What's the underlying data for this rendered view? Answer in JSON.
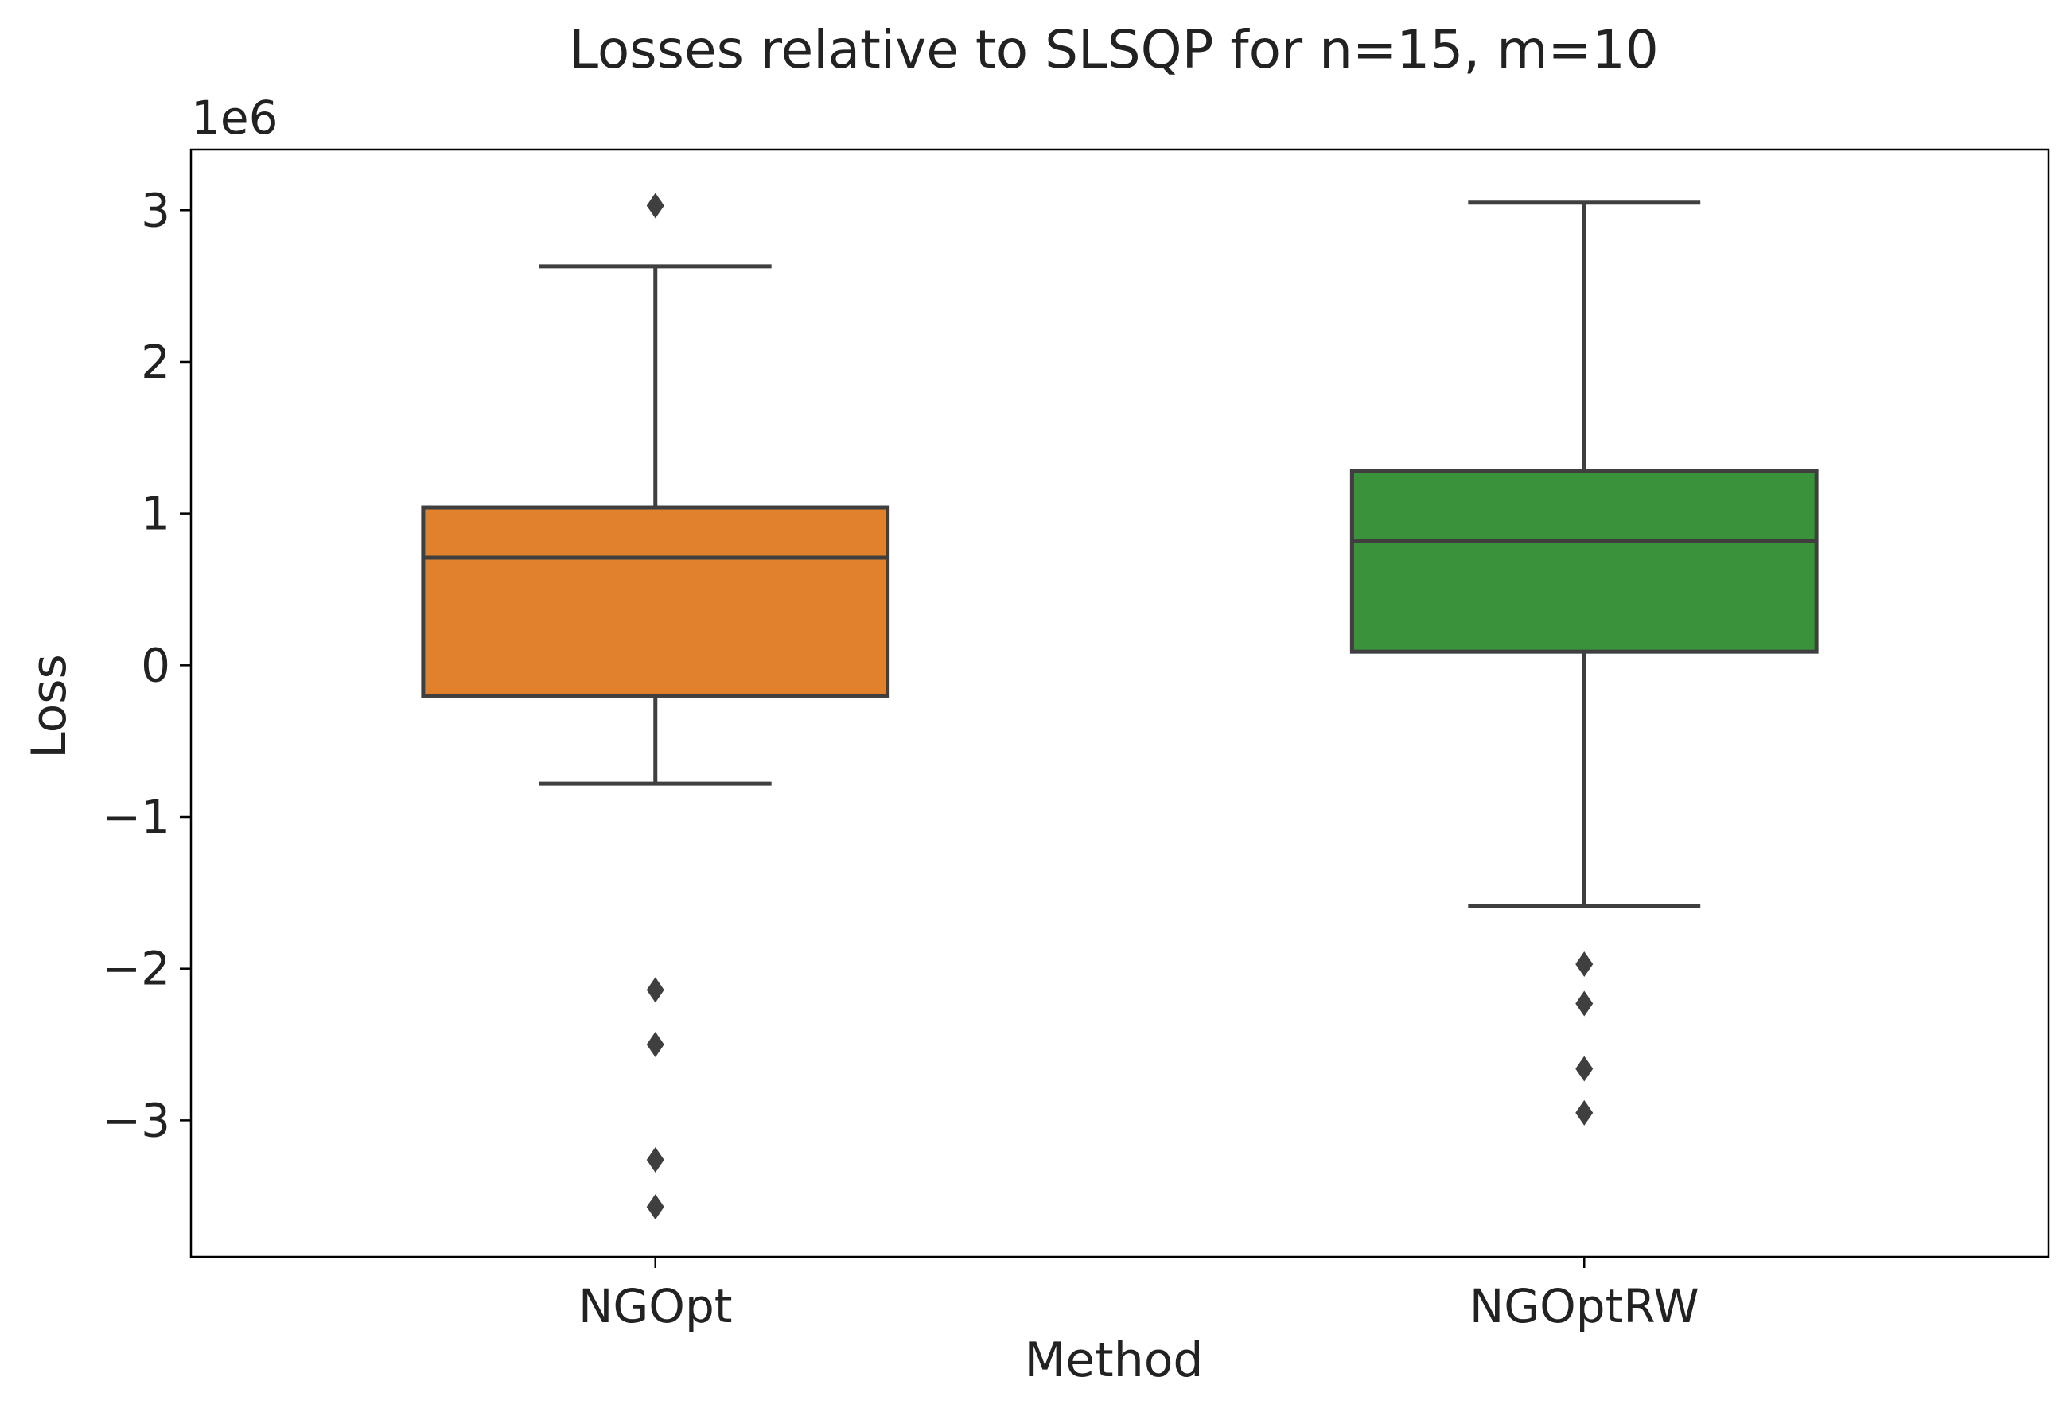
{
  "chart_data": {
    "type": "box",
    "title": "Losses relative to SLSQP for n=15, m=10",
    "xlabel": "Method",
    "ylabel": "Loss",
    "y_offset_label": "1e6",
    "y_scale": 1000000,
    "ylim": [
      -3.9,
      3.4
    ],
    "yticks": [
      -3,
      -2,
      -1,
      0,
      1,
      2,
      3
    ],
    "ytick_labels": [
      "−3",
      "−2",
      "−1",
      "0",
      "1",
      "2",
      "3"
    ],
    "grid": false,
    "legend": "none",
    "categories": [
      "NGOpt",
      "NGOptRW"
    ],
    "boxes": [
      {
        "name": "NGOpt",
        "color": "#e1812c",
        "whisker_low": -0.78,
        "q1": -0.2,
        "median": 0.71,
        "q3": 1.04,
        "whisker_high": 2.63,
        "outliers": [
          3.03,
          -2.14,
          -2.5,
          -3.26,
          -3.57
        ]
      },
      {
        "name": "NGOptRW",
        "color": "#3a923a",
        "whisker_low": -1.59,
        "q1": 0.09,
        "median": 0.82,
        "q3": 1.28,
        "whisker_high": 3.05,
        "outliers": [
          -1.97,
          -2.23,
          -2.66,
          -2.95
        ]
      }
    ],
    "edge_color": "#3f3f3f"
  }
}
